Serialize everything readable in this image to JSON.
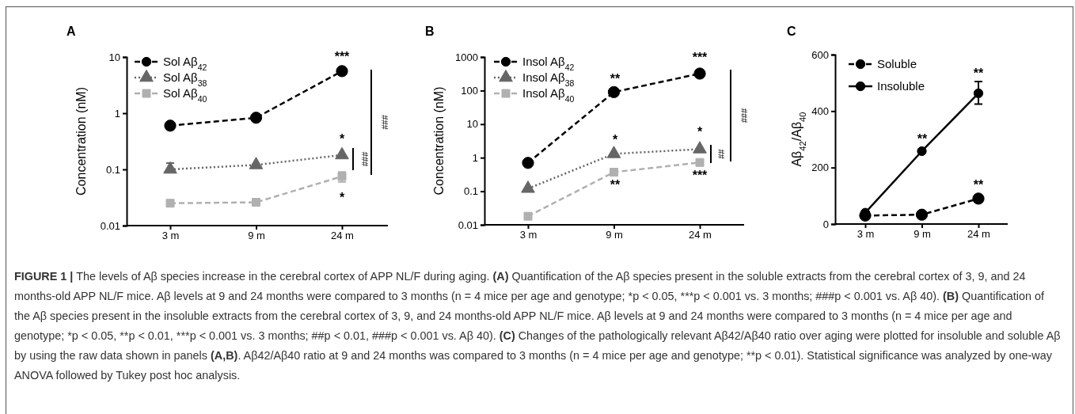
{
  "chart_data": [
    {
      "type": "line",
      "title": "A",
      "ylabel": "Concentration (nM)",
      "categories": [
        "3 m",
        "9 m",
        "24 m"
      ],
      "log": true,
      "ylim": [
        0.01,
        10
      ],
      "yticks": [
        0.01,
        0.1,
        1,
        10
      ],
      "legend": "top left",
      "series": [
        {
          "name": "Sol Aβ$_{42}$",
          "color": "#000000",
          "marker": "circle",
          "line_style": "dashed",
          "values": [
            0.6,
            0.83,
            5.6
          ]
        },
        {
          "name": "Sol Aβ$_{38}$",
          "color": "#666666",
          "marker": "triangle",
          "line_style": "dotted",
          "values": [
            0.1,
            0.12,
            0.18
          ],
          "errors": [
            [
              0.09,
              0.13
            ],
            null,
            null
          ]
        },
        {
          "name": "Sol Aβ$_{40}$",
          "color": "#b0b0b0",
          "marker": "square",
          "line_style": "dashed",
          "values": [
            0.025,
            0.026,
            0.075
          ],
          "errors": [
            null,
            null,
            [
              0.06,
              0.09
            ]
          ]
        }
      ],
      "annotations": [
        "***",
        "*",
        "*",
        "###",
        "###"
      ]
    },
    {
      "type": "line",
      "title": "B",
      "ylabel": "Concentration (nM)",
      "categories": [
        "3 m",
        "9 m",
        "24 m"
      ],
      "log": true,
      "ylim": [
        0.01,
        1000
      ],
      "yticks": [
        0.01,
        0.1,
        1,
        10,
        100,
        1000
      ],
      "legend": "top left",
      "series": [
        {
          "name": "Insol Aβ$_{42}$",
          "color": "#000000",
          "marker": "circle",
          "line_style": "dashed",
          "values": [
            0.7,
            90,
            320
          ]
        },
        {
          "name": "Insol Aβ$_{38}$",
          "color": "#666666",
          "marker": "triangle",
          "line_style": "dotted",
          "values": [
            0.12,
            1.3,
            1.8
          ]
        },
        {
          "name": "Insol Aβ$_{40}$",
          "color": "#b0b0b0",
          "marker": "square",
          "line_style": "dashed",
          "values": [
            0.018,
            0.37,
            0.72
          ]
        }
      ],
      "annotations": [
        "**",
        "***",
        "*",
        "*",
        "**",
        "***",
        "##",
        "###"
      ]
    },
    {
      "type": "line",
      "title": "C",
      "ylabel": "Aβ$_{42}$/Aβ$_{40}$",
      "categories": [
        "3 m",
        "9 m",
        "24 m"
      ],
      "ylim": [
        0,
        600
      ],
      "yticks": [
        0,
        200,
        400,
        600
      ],
      "legend": "top left",
      "series": [
        {
          "name": "Soluble",
          "color": "#000000",
          "marker": "circle",
          "line_style": "dashed",
          "values": [
            30,
            33,
            90
          ]
        },
        {
          "name": "Insoluble",
          "color": "#000000",
          "marker": "circle",
          "line_style": "solid",
          "values": [
            40,
            258,
            463
          ],
          "errors": [
            null,
            null,
            [
              425,
              505
            ]
          ]
        }
      ],
      "annotations": [
        "**",
        "**",
        "**"
      ]
    },
    {
      "type": "other",
      "annotations": [
        "FIGURE 1 |",
        " The levels of Aβ species increase in the cerebral cortex of APP NL/F during aging. ",
        "(A)",
        " Quantification of the Aβ species present in the soluble extracts from the cerebral cortex of 3, 9, and 24 months-old APP NL/F mice. Aβ levels at 9 and 24 months were compared to 3 months (n = 4 mice per age and genotype; *p < 0.05, ***p < 0.001 vs. 3 months; ###p < 0.001 vs. Aβ 40). ",
        "(B)",
        " Quantification of the Aβ species present in the insoluble extracts from the cerebral cortex of 3, 9, and 24 months-old APP NL/F mice. Aβ levels at 9 and 24 months were compared to 3 months (n = 4 mice per age and genotype; *p < 0.05, **p < 0.01, ***p < 0.001 vs. 3 months; ##p < 0.01, ###p < 0.001 vs. Aβ 40). ",
        "(C)",
        " Changes of the pathologically relevant Aβ42/Aβ40 ratio over aging were plotted for insoluble and soluble Aβ by using the raw data shown in panels ",
        "(A,B)",
        ". Aβ42/Aβ40 ratio at 9 and 24 months was compared to 3 months (n = 4 mice per age and genotype; **p < 0.01). Statistical significance was analyzed by one-way ANOVA followed by Tukey post hoc analysis."
      ]
    }
  ]
}
